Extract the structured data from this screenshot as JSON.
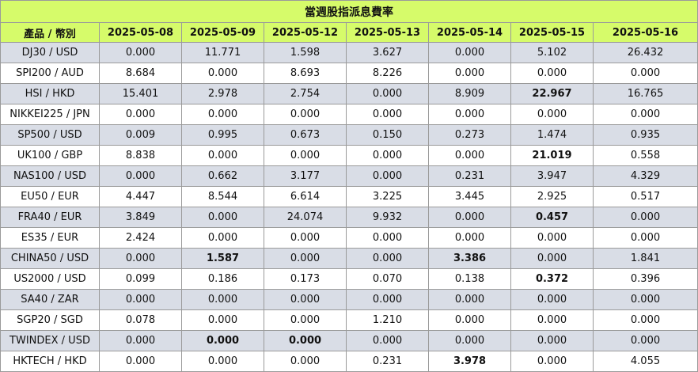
{
  "title": "當週股指派息費率",
  "header": {
    "product": "產品 / 幣別",
    "dates": [
      "2025-05-08",
      "2025-05-09",
      "2025-05-12",
      "2025-05-13",
      "2025-05-14",
      "2025-05-15",
      "2025-05-16"
    ]
  },
  "rows": [
    {
      "name": "DJ30 / USD",
      "values": [
        "0.000",
        "11.771",
        "1.598",
        "3.627",
        "0.000",
        "5.102",
        "26.432"
      ],
      "bold": []
    },
    {
      "name": "SPI200 / AUD",
      "values": [
        "8.684",
        "0.000",
        "8.693",
        "8.226",
        "0.000",
        "0.000",
        "0.000"
      ],
      "bold": []
    },
    {
      "name": "HSI / HKD",
      "values": [
        "15.401",
        "2.978",
        "2.754",
        "0.000",
        "8.909",
        "22.967",
        "16.765"
      ],
      "bold": [
        5
      ]
    },
    {
      "name": "NIKKEI225 / JPN",
      "values": [
        "0.000",
        "0.000",
        "0.000",
        "0.000",
        "0.000",
        "0.000",
        "0.000"
      ],
      "bold": []
    },
    {
      "name": "SP500 / USD",
      "values": [
        "0.009",
        "0.995",
        "0.673",
        "0.150",
        "0.273",
        "1.474",
        "0.935"
      ],
      "bold": []
    },
    {
      "name": "UK100 / GBP",
      "values": [
        "8.838",
        "0.000",
        "0.000",
        "0.000",
        "0.000",
        "21.019",
        "0.558"
      ],
      "bold": [
        5
      ]
    },
    {
      "name": "NAS100 / USD",
      "values": [
        "0.000",
        "0.662",
        "3.177",
        "0.000",
        "0.231",
        "3.947",
        "4.329"
      ],
      "bold": []
    },
    {
      "name": "EU50 / EUR",
      "values": [
        "4.447",
        "8.544",
        "6.614",
        "3.225",
        "3.445",
        "2.925",
        "0.517"
      ],
      "bold": []
    },
    {
      "name": "FRA40 / EUR",
      "values": [
        "3.849",
        "0.000",
        "24.074",
        "9.932",
        "0.000",
        "0.457",
        "0.000"
      ],
      "bold": [
        5
      ]
    },
    {
      "name": "ES35 / EUR",
      "values": [
        "2.424",
        "0.000",
        "0.000",
        "0.000",
        "0.000",
        "0.000",
        "0.000"
      ],
      "bold": []
    },
    {
      "name": "CHINA50 / USD",
      "values": [
        "0.000",
        "1.587",
        "0.000",
        "0.000",
        "3.386",
        "0.000",
        "1.841"
      ],
      "bold": [
        1,
        4
      ]
    },
    {
      "name": "US2000 / USD",
      "values": [
        "0.099",
        "0.186",
        "0.173",
        "0.070",
        "0.138",
        "0.372",
        "0.396"
      ],
      "bold": [
        5
      ]
    },
    {
      "name": "SA40 / ZAR",
      "values": [
        "0.000",
        "0.000",
        "0.000",
        "0.000",
        "0.000",
        "0.000",
        "0.000"
      ],
      "bold": []
    },
    {
      "name": "SGP20 / SGD",
      "values": [
        "0.078",
        "0.000",
        "0.000",
        "1.210",
        "0.000",
        "0.000",
        "0.000"
      ],
      "bold": []
    },
    {
      "name": "TWINDEX / USD",
      "values": [
        "0.000",
        "0.000",
        "0.000",
        "0.000",
        "0.000",
        "0.000",
        "0.000"
      ],
      "bold": [
        1,
        2
      ]
    },
    {
      "name": "HKTECH / HKD",
      "values": [
        "0.000",
        "0.000",
        "0.000",
        "0.231",
        "3.978",
        "0.000",
        "4.055"
      ],
      "bold": [
        4
      ]
    }
  ]
}
